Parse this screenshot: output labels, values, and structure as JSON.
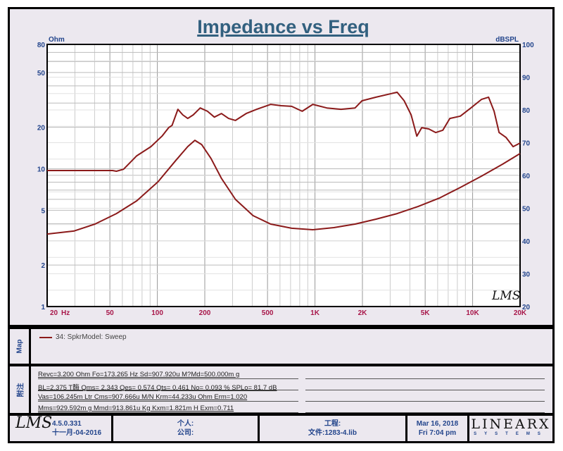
{
  "chart_data": {
    "type": "line",
    "title": "Impedance vs Freq",
    "xlabel": "Hz",
    "ylabel": "Ohm",
    "y2label": "dBSPL",
    "xscale": "log",
    "xlim": [
      20,
      20000
    ],
    "yscale": "log",
    "ylim": [
      1,
      80
    ],
    "y2lim": [
      20,
      100
    ],
    "grid": true,
    "x_ticks": [
      "20",
      "50",
      "100",
      "200",
      "500",
      "1K",
      "2K",
      "5K",
      "10K",
      "20K"
    ],
    "x_tick_values": [
      20,
      50,
      100,
      200,
      500,
      1000,
      2000,
      5000,
      10000,
      20000
    ],
    "y_ticks": [
      "80",
      "50",
      "20",
      "10",
      "5",
      "2",
      "1"
    ],
    "y_tick_values": [
      80,
      50,
      20,
      10,
      5,
      2,
      1
    ],
    "y2_ticks": [
      "100",
      "90",
      "80",
      "70",
      "60",
      "50",
      "40",
      "30",
      "20"
    ],
    "y2_tick_values": [
      100,
      90,
      80,
      70,
      60,
      50,
      40,
      30,
      20
    ],
    "series": [
      {
        "axis": "y2",
        "color": "#8b1a1a",
        "x": [
          20,
          52,
          55,
          61,
          67,
          74,
          91,
          107,
          118,
          124,
          135,
          145,
          156,
          169,
          187,
          208,
          230,
          255,
          283,
          313,
          366,
          427,
          524,
          611,
          711,
          830,
          969,
          1189,
          1462,
          1795,
          1987,
          2440,
          3000,
          3320,
          3680,
          4075,
          4425,
          4755,
          5270,
          5840,
          6470,
          7170,
          8360,
          9750,
          11380,
          12620,
          13690,
          14720,
          16300,
          18070,
          20000
        ],
        "y": [
          61.5,
          61.5,
          61.3,
          61.9,
          63.9,
          66.0,
          68.8,
          72.0,
          74.6,
          75.3,
          80.2,
          78.5,
          77.4,
          78.5,
          80.6,
          79.6,
          77.8,
          78.9,
          77.4,
          76.8,
          78.9,
          80.2,
          81.7,
          81.3,
          81.1,
          79.6,
          81.7,
          80.6,
          80.2,
          80.6,
          82.8,
          83.9,
          84.9,
          85.4,
          82.8,
          78.5,
          72.0,
          74.6,
          74.2,
          73.1,
          73.8,
          77.4,
          78.1,
          80.6,
          83.2,
          83.9,
          79.6,
          73.1,
          71.6,
          68.8,
          69.9
        ]
      },
      {
        "axis": "y",
        "color": "#8b1a1a",
        "x": [
          20,
          29.5,
          40.2,
          55,
          74,
          101,
          131,
          156,
          173,
          191,
          219,
          255,
          313,
          405,
          524,
          711,
          969,
          1318,
          1795,
          2440,
          3320,
          4520,
          6150,
          8360,
          11380,
          15490,
          20000
        ],
        "y": [
          3.36,
          3.53,
          3.97,
          4.73,
          5.85,
          8.04,
          11.5,
          14.5,
          16.1,
          15.0,
          11.9,
          8.53,
          5.99,
          4.57,
          3.97,
          3.7,
          3.61,
          3.74,
          3.97,
          4.31,
          4.73,
          5.33,
          6.13,
          7.32,
          8.84,
          10.8,
          12.9
        ]
      }
    ]
  },
  "legend": {
    "side_label": "Map",
    "entry": "34: SpkrModel: Sweep"
  },
  "notes": {
    "side_label": "附注",
    "lines": [
      "Revc=3.200 Ohm  Fo=173.265 Hz  Sd=907.920u M?Md=500.000m g",
      "BL=2.375 T酶  Qms= 2.343  Qes= 0.574  Qts= 0.461  No= 0.093 %  SPLo= 81.7 dB",
      "Vas=106.245m Ltr  Cms=907.666u M/N  Krm=44.233u Ohm  Erm=1.020",
      "Mms=929.592m g  Mmd=913.861u Kg  Kxm=1.821m H  Exm=0.711"
    ]
  },
  "footer": {
    "logo": "LMS",
    "version": "4.5.0.331",
    "build_date": "十一月-04-2016",
    "person": "个人:",
    "company": "公司:",
    "project": "工程:",
    "file": "文件:1283-4.lib",
    "date": "Mar 16, 2018",
    "time": "Fri  7:04 pm",
    "brand": "LINEARX",
    "brand_sub": "SYSTEMS"
  },
  "watermark": "LMS",
  "colors": {
    "curve": "#8b1a1a",
    "axis_text": "#23458c",
    "x_tick_text": "#a8174a",
    "title": "#32607f"
  }
}
